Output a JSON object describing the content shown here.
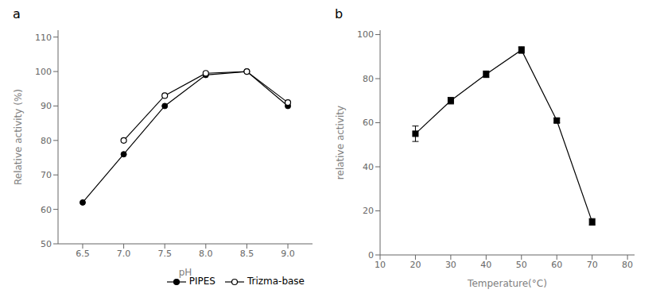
{
  "chart_data": [
    {
      "type": "line",
      "title": "a",
      "x_label": "pH",
      "y_label": "Relative activity (%)",
      "x": [
        6.5,
        7.0,
        7.5,
        8.0,
        8.5,
        9.0
      ],
      "series": [
        {
          "name": "PIPES",
          "color": "#000000",
          "marker": "circle",
          "values": [
            62,
            76,
            90,
            99,
            100,
            90
          ]
        },
        {
          "name": "Trizma-base",
          "color": "#000000",
          "marker": "open_circle",
          "values": [
            null,
            80,
            93,
            99.5,
            100,
            91
          ]
        }
      ],
      "xlim": [
        6.2,
        9.3
      ],
      "xticks": [
        6.5,
        {
          "value": 7,
          "label": "7.0"
        },
        7.5,
        {
          "value": 8,
          "label": "8.0"
        },
        8.5,
        {
          "value": 9,
          "label": "9.0"
        }
      ],
      "ylim": [
        50,
        112
      ],
      "yticks": [
        50,
        60,
        70,
        80,
        90,
        100,
        110
      ],
      "grid": false,
      "legend": "lower right"
    },
    {
      "type": "line",
      "title": "b",
      "x_label": "Temperature(°C)",
      "y_label": "relative activity",
      "x": [
        20,
        30,
        40,
        50,
        60,
        70
      ],
      "series": [
        {
          "color": "#000000",
          "marker": "square",
          "values": [
            55,
            70,
            82,
            93,
            61,
            15
          ],
          "yerr": [
            3.5,
            1.5,
            1.5,
            1.5,
            1.0,
            1.5
          ]
        }
      ],
      "xlim": [
        10,
        82
      ],
      "xticks": [
        10,
        20,
        30,
        40,
        50,
        60,
        70,
        80
      ],
      "ylim": [
        0,
        102
      ],
      "yticks": [
        0,
        20,
        40,
        60,
        80,
        100
      ],
      "grid": false
    }
  ]
}
